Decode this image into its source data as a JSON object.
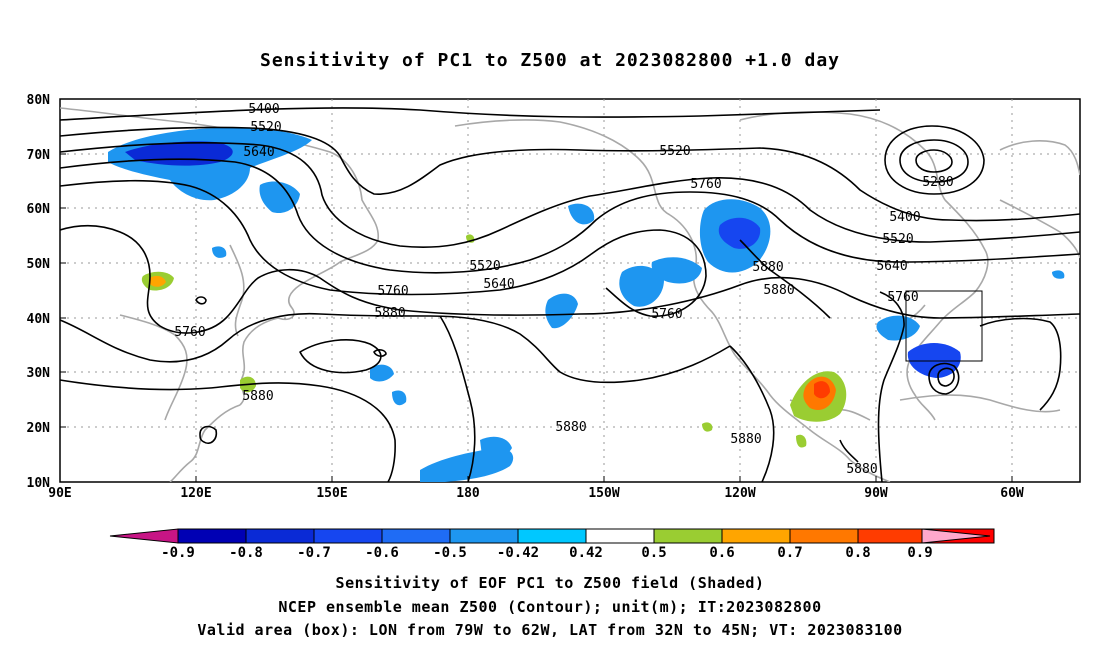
{
  "title": "Sensitivity of PC1 to Z500 at 2023082800 +1.0 day",
  "lat_labels": [
    "80N",
    "70N",
    "60N",
    "50N",
    "40N",
    "30N",
    "20N",
    "10N"
  ],
  "lon_labels": [
    "90E",
    "120E",
    "150E",
    "180",
    "150W",
    "120W",
    "90W",
    "60W"
  ],
  "contour_labels": [
    "5400",
    "5520",
    "5640",
    "5520",
    "5760",
    "5280",
    "5400",
    "5520",
    "5640",
    "5520",
    "5640",
    "5760",
    "5880",
    "5880",
    "5760",
    "5880",
    "5760",
    "5760",
    "5880",
    "5880",
    "5880",
    "5880"
  ],
  "colorbar": {
    "labels": [
      "-0.9",
      "-0.8",
      "-0.7",
      "-0.6",
      "-0.5",
      "-0.42",
      "0.42",
      "0.5",
      "0.6",
      "0.7",
      "0.8",
      "0.9"
    ],
    "colors": [
      "#0000b4",
      "#0a2ad6",
      "#1646f0",
      "#1f6cf5",
      "#1e96f0",
      "#00c8ff",
      "#ffffff",
      "#9acd32",
      "#ffa500",
      "#ff7800",
      "#ff3c00",
      "#ff0000"
    ],
    "end_low": "#c71585",
    "end_high": "#ffa8cc"
  },
  "captions": {
    "line1": "Sensitivity of EOF PC1 to Z500 field (Shaded)",
    "line2": "NCEP ensemble mean Z500 (Contour); unit(m); IT:2023082800",
    "line3": "Valid area (box): LON from 79W to 62W, LAT from 32N to 45N; VT: 2023083100"
  },
  "colors": {
    "contour": "#000000",
    "coast": "#a8a8a8",
    "grid": "#9a9a9a"
  }
}
